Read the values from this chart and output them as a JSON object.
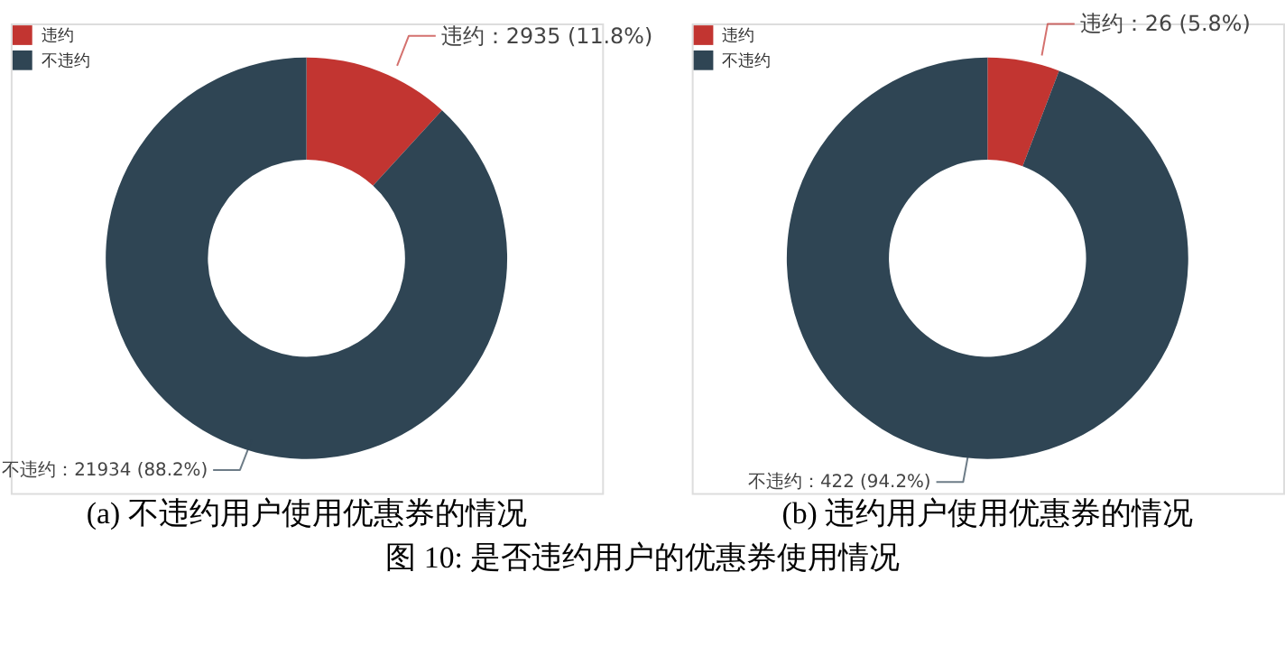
{
  "chart_data": [
    {
      "type": "donut",
      "xlabel": "(a) 不违约用户使用优惠券的情况",
      "categories": [
        "违约",
        "不违约"
      ],
      "values": [
        2935,
        21934
      ],
      "colors": [
        "#c23531",
        "#2f4554"
      ],
      "value_labels": [
        "违约：2935 (11.8%)",
        "不违约：21934 (88.2%)"
      ],
      "legend": "top left",
      "annotations": [
        "图 10: 是否违约用户的优惠券使用情况"
      ]
    },
    {
      "type": "donut",
      "xlabel": "(b) 违约用户使用优惠券的情况",
      "categories": [
        "违约",
        "不违约"
      ],
      "values": [
        26,
        422
      ],
      "colors": [
        "#c23531",
        "#2f4554"
      ],
      "value_labels": [
        "违约：26 (5.8%)",
        "不违约：422 (94.2%)"
      ],
      "legend": "top left"
    }
  ]
}
